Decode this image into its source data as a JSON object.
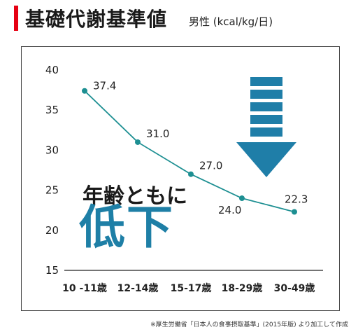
{
  "header": {
    "title": "基礎代謝基準値",
    "subtitle": "男性 (kcal/kg/日)"
  },
  "callout": {
    "line1": "年齢ともに",
    "line2": "低下"
  },
  "note": "※厚生労働省「日本人の食事摂取基準」(2015年版) より加工して作成",
  "colors": {
    "accent_red": "#e60012",
    "line": "#1d8f92",
    "arrow": "#1f7ea8",
    "axis": "#222222"
  },
  "chart_data": {
    "type": "line",
    "categories": [
      "10 -11歳",
      "12-14歳",
      "15-17歳",
      "18-29歳",
      "30-49歳"
    ],
    "series": [
      {
        "values": [
          37.4,
          31.0,
          27.0,
          24.0,
          22.3
        ]
      }
    ],
    "data_labels": [
      "37.4",
      "31.0",
      "27.0",
      "24.0",
      "22.3"
    ],
    "y_ticks": [
      15,
      20,
      25,
      30,
      35,
      40
    ],
    "ylim": [
      15,
      40
    ],
    "grid": false,
    "decorations": [
      "down-arrow-icon"
    ]
  }
}
